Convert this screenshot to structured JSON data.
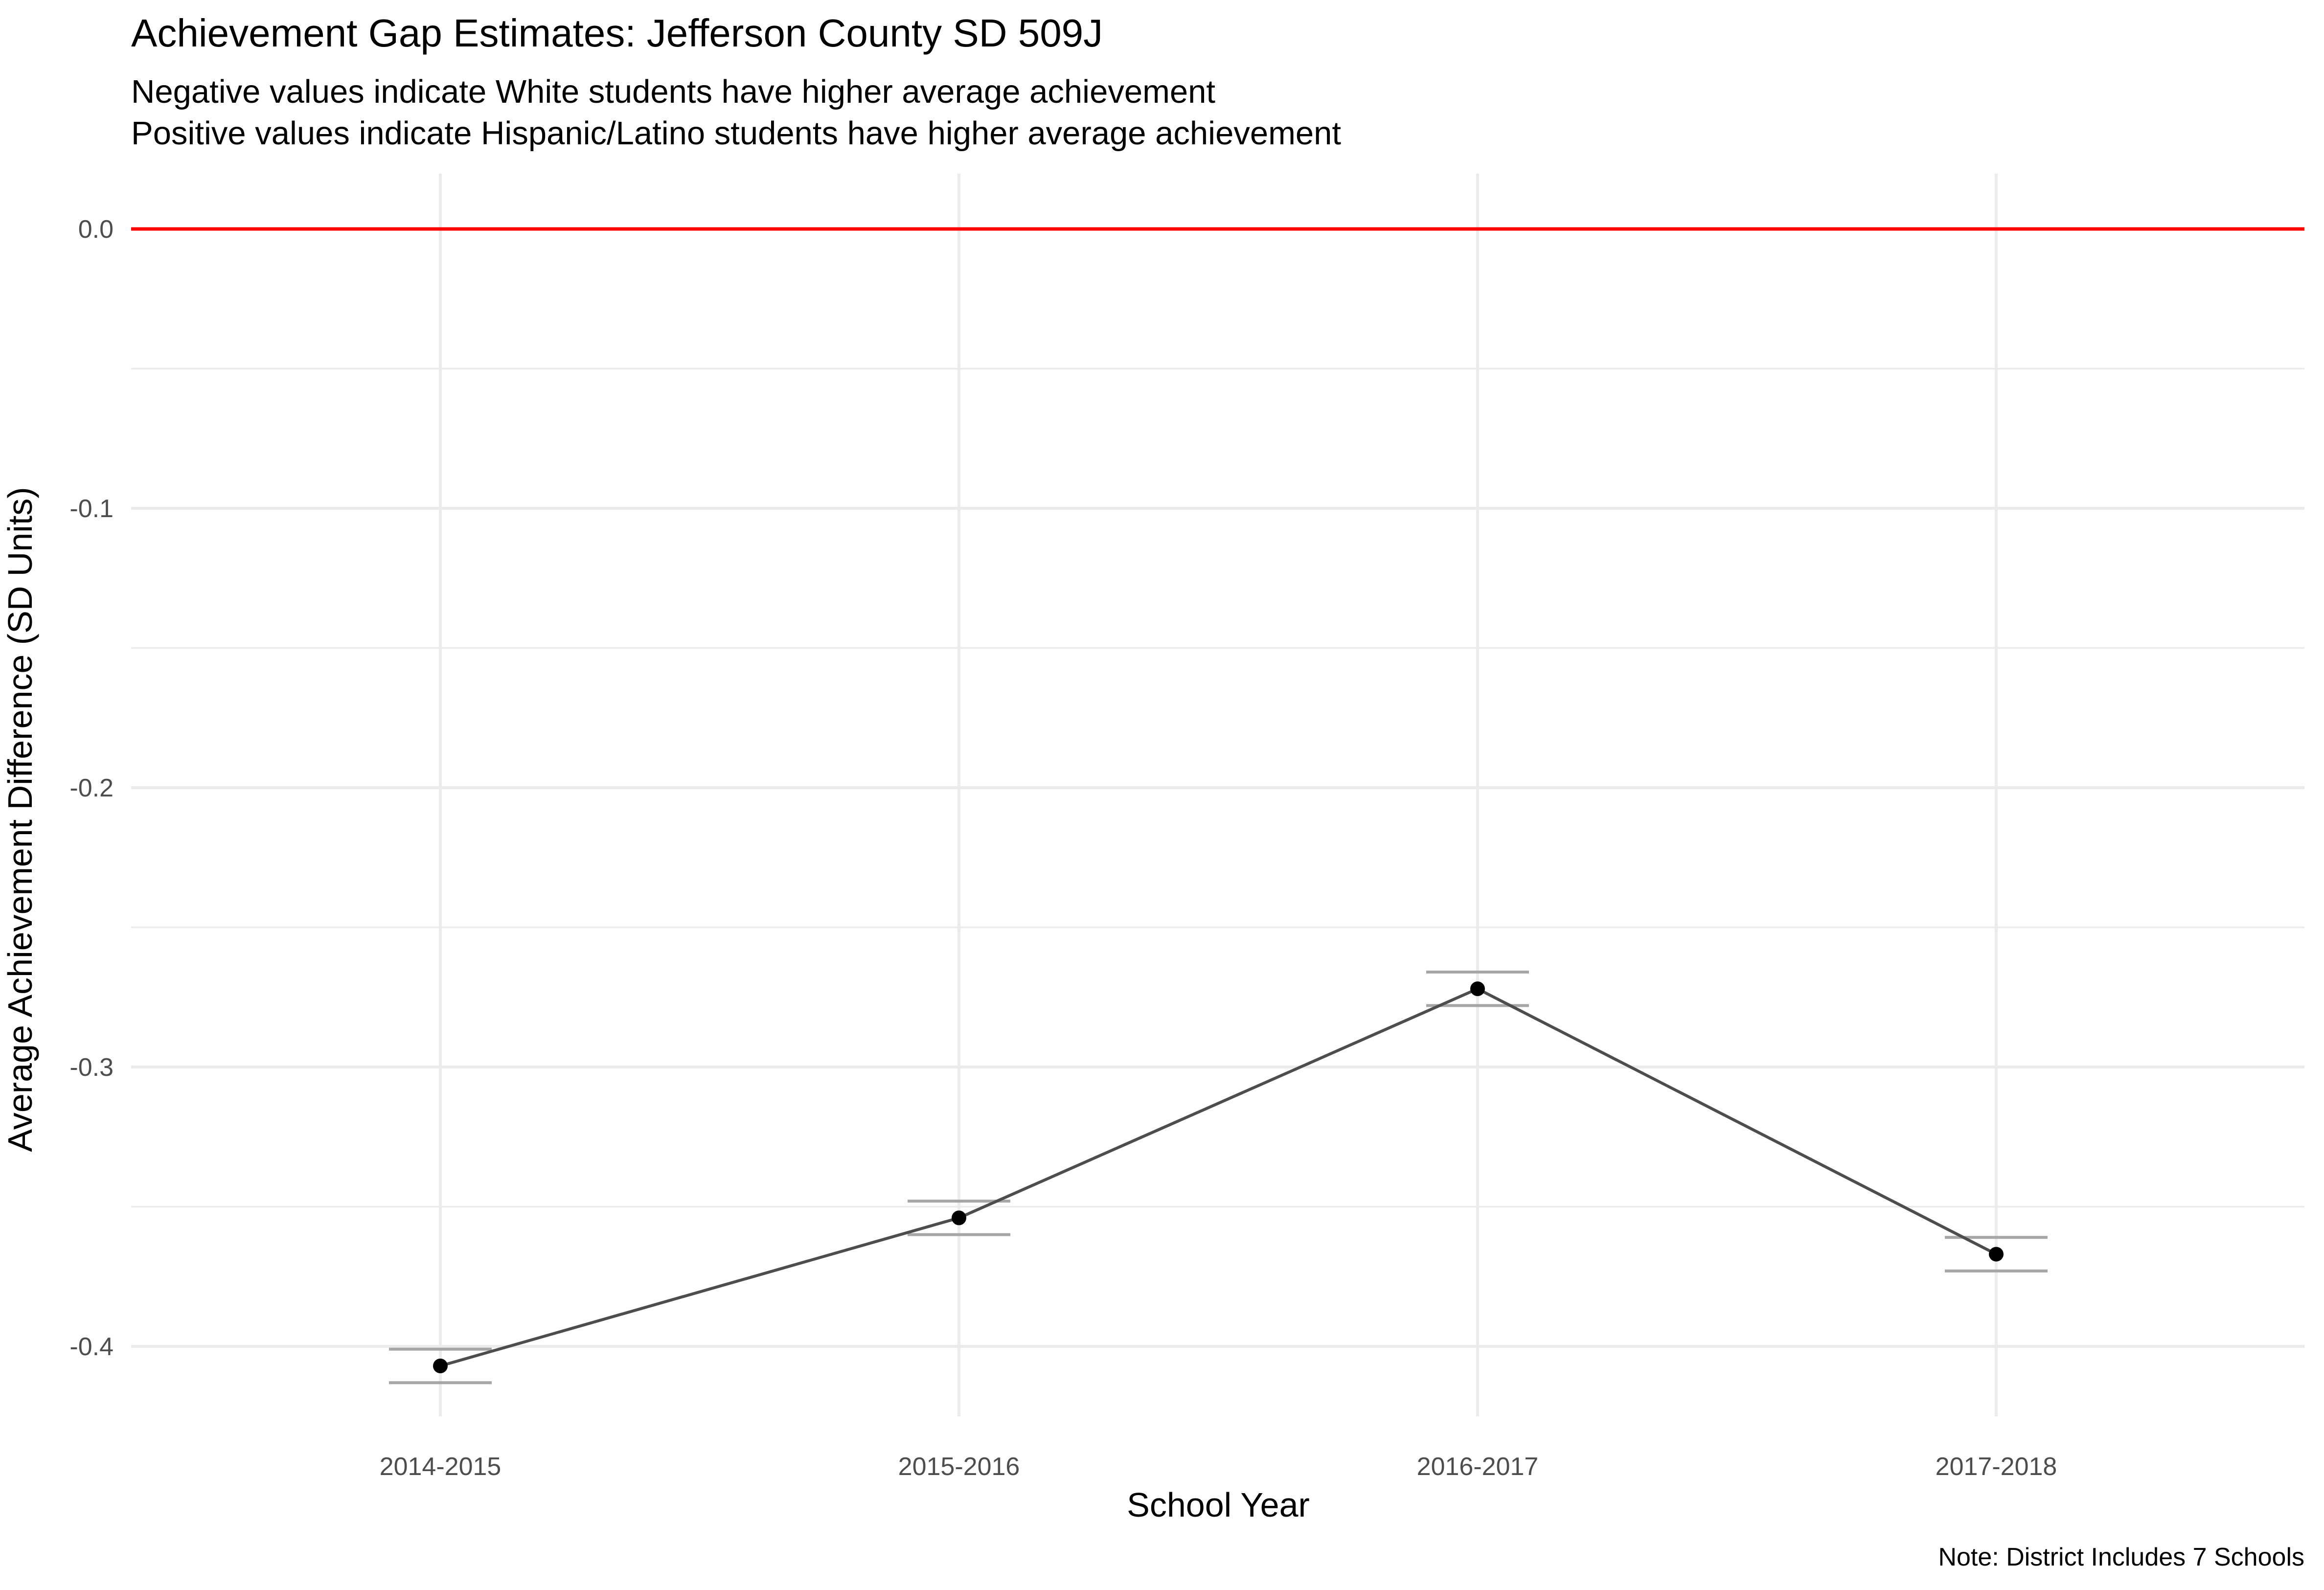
{
  "chart_data": {
    "type": "line",
    "title": "Achievement Gap Estimates: Jefferson County SD 509J",
    "subtitle": [
      "Negative values indicate White students have higher average achievement",
      "Positive values indicate Hispanic/Latino students have higher average achievement"
    ],
    "xlabel": "School Year",
    "ylabel": "Average Achievement Difference (SD Units)",
    "caption": "Note: District Includes 7 Schools",
    "categories": [
      "2014-2015",
      "2015-2016",
      "2016-2017",
      "2017-2018"
    ],
    "series": [
      {
        "values": [
          -0.407,
          -0.354,
          -0.272,
          -0.367
        ],
        "error_low": [
          -0.413,
          -0.36,
          -0.278,
          -0.373
        ],
        "error_high": [
          -0.401,
          -0.348,
          -0.266,
          -0.361
        ]
      }
    ],
    "y_ticks": [
      0.0,
      -0.1,
      -0.2,
      -0.3,
      -0.4
    ],
    "y_tick_labels": [
      "0.0",
      "-0.1",
      "-0.2",
      "-0.3",
      "-0.4"
    ],
    "ylim": [
      -0.435,
      0.02
    ],
    "reference_line": {
      "y": 0.0,
      "color": "#ff0000"
    },
    "grid": true,
    "colors": {
      "line": "#4d4d4d",
      "point": "#000000",
      "errorbar": "#a6a6a6",
      "reference": "#ff0000",
      "grid": "#ebebeb"
    }
  }
}
